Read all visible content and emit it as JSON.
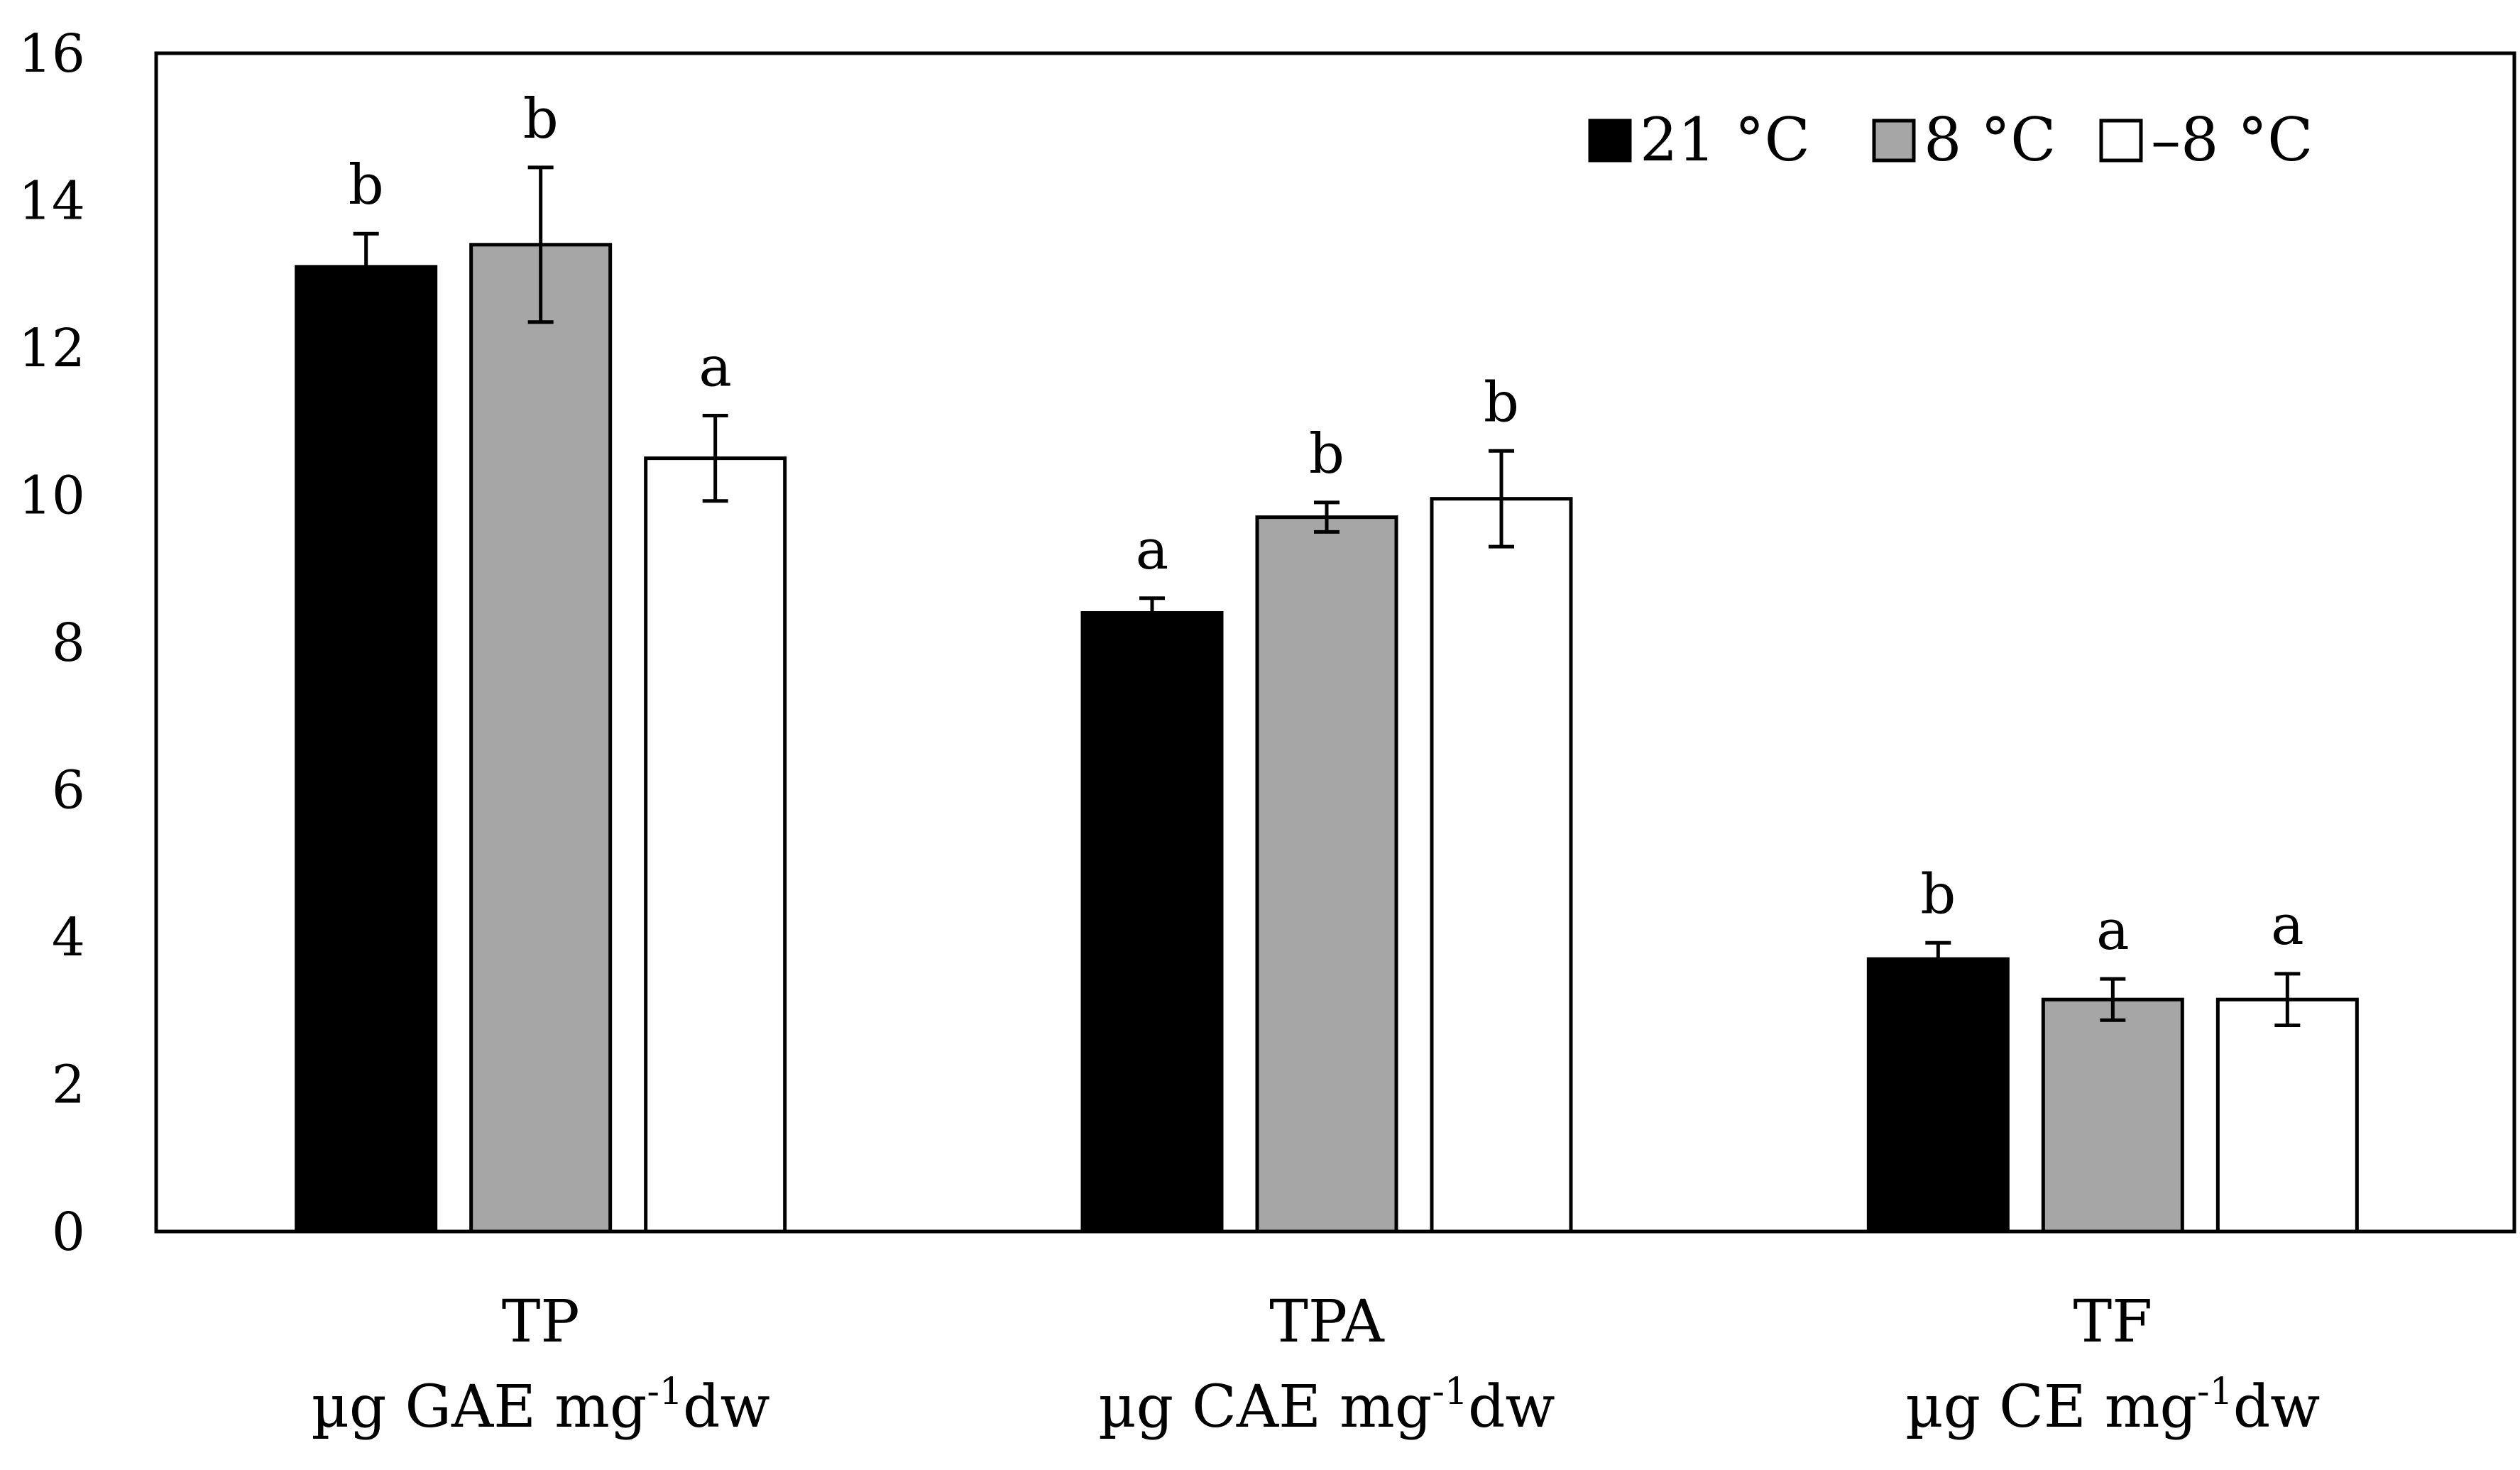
{
  "chart_data": {
    "type": "bar",
    "categories": [
      {
        "name": "TP",
        "unit_prefix": "µg GAE mg",
        "unit_sup": "-1",
        "unit_suffix": "dw"
      },
      {
        "name": "TPA",
        "unit_prefix": "µg CAE mg",
        "unit_sup": "-1",
        "unit_suffix": "dw"
      },
      {
        "name": "TF",
        "unit_prefix": "µg CE mg",
        "unit_sup": "-1",
        "unit_suffix": "dw"
      }
    ],
    "series": [
      {
        "name": "21 °C",
        "color": "#000000",
        "values": [
          13.1,
          8.4,
          3.7
        ],
        "errors": [
          0.45,
          0.2,
          0.22
        ],
        "letters": [
          "b",
          "a",
          "b"
        ]
      },
      {
        "name": "8 °C",
        "color": "#a6a6a6",
        "values": [
          13.4,
          9.7,
          3.15
        ],
        "errors": [
          1.05,
          0.2,
          0.28
        ],
        "letters": [
          "b",
          "b",
          "a"
        ]
      },
      {
        "name": "–8 °C",
        "color": "#ffffff",
        "values": [
          10.5,
          9.95,
          3.15
        ],
        "errors": [
          0.58,
          0.65,
          0.35
        ],
        "letters": [
          "a",
          "b",
          "a"
        ]
      }
    ],
    "ylim": [
      0,
      16
    ],
    "yticks": [
      0,
      2,
      4,
      6,
      8,
      10,
      12,
      14,
      16
    ],
    "legend_position": "top-right",
    "grid": false,
    "title": "",
    "xlabel": "",
    "ylabel": ""
  }
}
